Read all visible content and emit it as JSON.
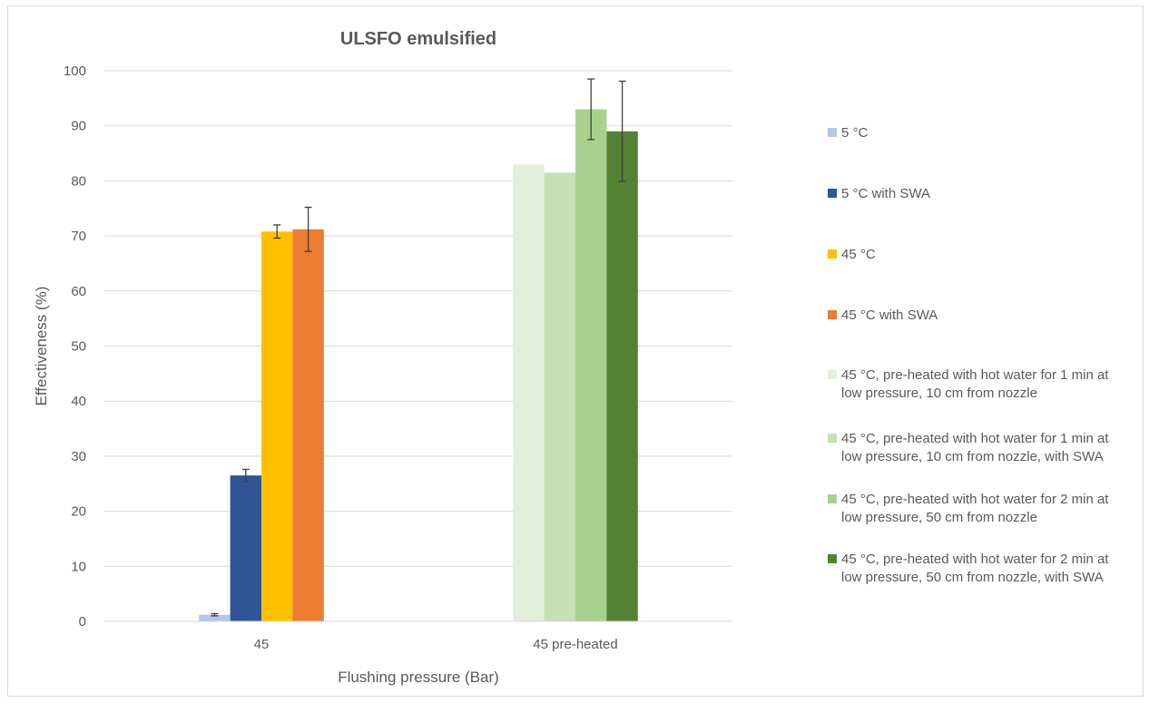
{
  "chart_data": {
    "type": "bar",
    "title": "ULSFO emulsified",
    "xlabel": "Flushing pressure (Bar)",
    "ylabel": "Effectiveness (%)",
    "ylim": [
      0,
      100
    ],
    "yticks": [
      0,
      10,
      20,
      30,
      40,
      50,
      60,
      70,
      80,
      90,
      100
    ],
    "grid": "horizontal",
    "legend_position": "right",
    "categories": [
      "45",
      "45  pre-heated"
    ],
    "series": [
      {
        "name": "5 °C",
        "color": "#b4c7e7",
        "values": [
          1.2,
          null
        ],
        "error": [
          0.2,
          null
        ]
      },
      {
        "name": "5 °C with SWA",
        "color": "#2f5597",
        "values": [
          26.5,
          null
        ],
        "error": [
          1.1,
          null
        ]
      },
      {
        "name": "45 °C",
        "color": "#ffc000",
        "values": [
          70.8,
          null
        ],
        "error": [
          1.2,
          null
        ]
      },
      {
        "name": "45 °C with SWA",
        "color": "#ed7d31",
        "values": [
          71.2,
          null
        ],
        "error": [
          4.0,
          null
        ]
      },
      {
        "name": "45 °C, pre-heated with hot water for 1 min at low pressure, 10 cm from nozzle",
        "color": "#e2efda",
        "values": [
          null,
          83.0
        ],
        "error": [
          null,
          null
        ]
      },
      {
        "name": "45 °C, pre-heated with hot water for 1 min at low pressure, 10 cm from nozzle, with SWA",
        "color": "#c5e0b4",
        "values": [
          null,
          81.5
        ],
        "error": [
          null,
          null
        ]
      },
      {
        "name": "45 °C, pre-heated with hot water for 2 min at low pressure, 50 cm from nozzle",
        "color": "#a9d18e",
        "values": [
          null,
          93.0
        ],
        "error": [
          null,
          5.5
        ]
      },
      {
        "name": "45 °C, pre-heated with hot water for 2 min at low pressure, 50 cm from nozzle, with SWA",
        "color": "#548235",
        "values": [
          null,
          89.0
        ],
        "error": [
          null,
          9.1
        ]
      }
    ]
  }
}
